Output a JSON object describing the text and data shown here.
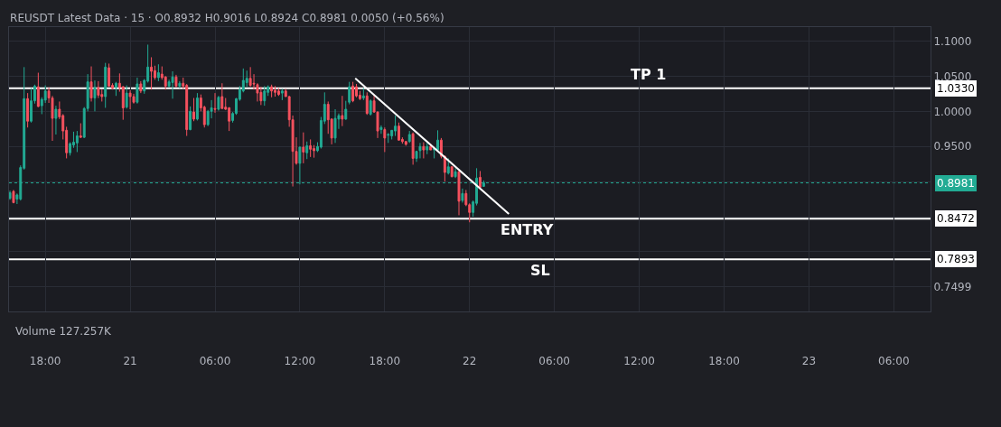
{
  "chart_data": {
    "type": "candlestick",
    "title": "REUSDT Latest Data · 15 · O0.8932 H0.9016 L0.8924 C0.8981 0.0050 (+0.56%)",
    "x": [
      "--01-20T15:30",
      "--01-20T15:45",
      "--01-20T16:00",
      "--01-20T16:15",
      "--01-20T16:30",
      "--01-20T16:45",
      "--01-20T17:00",
      "--01-20T17:15",
      "--01-20T17:30",
      "--01-20T17:45",
      "--01-20T18:00",
      "--01-20T18:15",
      "--01-20T18:30",
      "--01-20T18:45",
      "--01-20T19:00",
      "--01-20T19:15",
      "--01-20T19:30",
      "--01-20T19:45",
      "--01-20T20:00",
      "--01-20T20:15",
      "--01-20T20:30",
      "--01-20T20:45",
      "--01-20T21:00",
      "--01-20T21:15",
      "--01-20T21:30",
      "--01-20T21:45",
      "--01-20T22:00",
      "--01-20T22:15",
      "--01-20T22:30",
      "--01-20T22:45",
      "--01-20T23:00",
      "--01-20T23:15",
      "--01-20T23:30",
      "--01-20T23:45",
      "--01-21T00:00",
      "--01-21T00:15",
      "--01-21T00:30",
      "--01-21T00:45",
      "--01-21T01:00",
      "--01-21T01:15",
      "--01-21T01:30",
      "--01-21T01:45",
      "--01-21T02:00",
      "--01-21T02:15",
      "--01-21T02:30",
      "--01-21T02:45",
      "--01-21T03:00",
      "--01-21T03:15",
      "--01-21T03:30",
      "--01-21T03:45",
      "--01-21T04:00",
      "--01-21T04:15",
      "--01-21T04:30",
      "--01-21T04:45",
      "--01-21T05:00",
      "--01-21T05:15",
      "--01-21T05:30",
      "--01-21T05:45",
      "--01-21T06:00",
      "--01-21T06:15",
      "--01-21T06:30",
      "--01-21T06:45",
      "--01-21T07:00",
      "--01-21T07:15",
      "--01-21T07:30",
      "--01-21T07:45",
      "--01-21T08:00",
      "--01-21T08:15",
      "--01-21T08:30",
      "--01-21T08:45",
      "--01-21T09:00",
      "--01-21T09:15",
      "--01-21T09:30",
      "--01-21T09:45",
      "--01-21T10:00",
      "--01-21T10:15",
      "--01-21T10:30",
      "--01-21T10:45",
      "--01-21T11:00",
      "--01-21T11:15",
      "--01-21T11:30",
      "--01-21T11:45",
      "--01-21T12:00",
      "--01-21T12:15",
      "--01-21T12:30",
      "--01-21T12:45",
      "--01-21T13:00",
      "--01-21T13:15",
      "--01-21T13:30",
      "--01-21T13:45",
      "--01-21T14:00",
      "--01-21T14:15",
      "--01-21T14:30",
      "--01-21T14:45",
      "--01-21T15:00",
      "--01-21T15:15",
      "--01-21T15:30",
      "--01-21T15:45",
      "--01-21T16:00",
      "--01-21T16:15",
      "--01-21T16:30",
      "--01-21T16:45",
      "--01-21T17:00",
      "--01-21T17:15",
      "--01-21T17:30",
      "--01-21T17:45",
      "--01-21T18:00",
      "--01-21T18:15",
      "--01-21T18:30",
      "--01-21T18:45",
      "--01-21T19:00",
      "--01-21T19:15",
      "--01-21T19:30",
      "--01-21T19:45",
      "--01-21T20:00",
      "--01-21T20:15",
      "--01-21T20:30",
      "--01-21T20:45",
      "--01-21T21:00",
      "--01-21T21:15",
      "--01-21T21:30",
      "--01-21T21:45",
      "--01-21T22:00",
      "--01-21T22:15",
      "--01-21T22:30",
      "--01-21T22:45",
      "--01-21T23:00",
      "--01-21T23:15",
      "--01-21T23:30",
      "--01-21T23:45",
      "--01-22T00:00",
      "--01-22T00:15",
      "--01-22T00:30",
      "--01-22T00:45",
      "--01-22T01:00"
    ],
    "ohlc": [
      [
        0.876,
        0.887,
        0.874,
        0.884
      ],
      [
        0.886,
        0.888,
        0.869,
        0.87
      ],
      [
        0.875,
        0.883,
        0.868,
        0.881
      ],
      [
        0.875,
        0.923,
        0.873,
        0.92
      ],
      [
        0.919,
        1.063,
        0.917,
        1.018
      ],
      [
        1.018,
        1.026,
        0.977,
        0.986
      ],
      [
        0.986,
        1.033,
        0.984,
        1.015
      ],
      [
        1.015,
        1.038,
        1.011,
        1.036
      ],
      [
        1.035,
        1.055,
        1.006,
        1.007
      ],
      [
        1.008,
        1.02,
        0.996,
        1.017
      ],
      [
        1.016,
        1.037,
        1.012,
        1.029
      ],
      [
        1.029,
        1.034,
        1.012,
        1.019
      ],
      [
        1.019,
        1.022,
        0.958,
        0.99
      ],
      [
        0.99,
        1.008,
        0.967,
        1.003
      ],
      [
        1.003,
        1.014,
        0.989,
        0.992
      ],
      [
        0.994,
        0.996,
        0.96,
        0.972
      ],
      [
        0.973,
        0.978,
        0.933,
        0.941
      ],
      [
        0.941,
        0.956,
        0.937,
        0.954
      ],
      [
        0.952,
        0.971,
        0.948,
        0.956
      ],
      [
        0.955,
        0.972,
        0.942,
        0.965
      ],
      [
        0.965,
        0.983,
        0.962,
        0.963
      ],
      [
        0.963,
        1.006,
        0.962,
        1.004
      ],
      [
        1.004,
        1.053,
        1.0,
        1.042
      ],
      [
        1.042,
        1.064,
        1.014,
        1.019
      ],
      [
        1.019,
        1.044,
        1.0,
        1.034
      ],
      [
        1.034,
        1.043,
        1.019,
        1.023
      ],
      [
        1.024,
        1.031,
        1.014,
        1.021
      ],
      [
        1.021,
        1.069,
        1.005,
        1.063
      ],
      [
        1.062,
        1.068,
        1.035,
        1.036
      ],
      [
        1.037,
        1.04,
        1.031,
        1.033
      ],
      [
        1.034,
        1.042,
        1.022,
        1.04
      ],
      [
        1.04,
        1.054,
        1.028,
        1.034
      ],
      [
        1.035,
        1.036,
        0.988,
        1.005
      ],
      [
        1.006,
        1.037,
        1.004,
        1.026
      ],
      [
        1.026,
        1.03,
        1.003,
        1.021
      ],
      [
        1.021,
        1.025,
        1.011,
        1.013
      ],
      [
        1.013,
        1.048,
        1.011,
        1.039
      ],
      [
        1.039,
        1.043,
        1.026,
        1.029
      ],
      [
        1.029,
        1.046,
        1.025,
        1.044
      ],
      [
        1.043,
        1.095,
        1.041,
        1.063
      ],
      [
        1.063,
        1.077,
        1.031,
        1.057
      ],
      [
        1.058,
        1.065,
        1.045,
        1.048
      ],
      [
        1.048,
        1.067,
        1.043,
        1.055
      ],
      [
        1.053,
        1.064,
        1.045,
        1.048
      ],
      [
        1.049,
        1.05,
        1.031,
        1.036
      ],
      [
        1.036,
        1.045,
        1.034,
        1.042
      ],
      [
        1.041,
        1.057,
        1.018,
        1.049
      ],
      [
        1.049,
        1.052,
        1.034,
        1.036
      ],
      [
        1.036,
        1.043,
        1.033,
        1.04
      ],
      [
        1.04,
        1.048,
        1.032,
        1.036
      ],
      [
        1.037,
        1.039,
        0.965,
        0.974
      ],
      [
        0.974,
        1.007,
        0.973,
        1.0
      ],
      [
        0.999,
        1.019,
        0.986,
        0.989
      ],
      [
        0.989,
        1.026,
        0.987,
        1.019
      ],
      [
        1.019,
        1.024,
        1.0,
        1.005
      ],
      [
        1.006,
        1.008,
        0.977,
        0.981
      ],
      [
        0.981,
        1.002,
        0.979,
        1.0
      ],
      [
        1.0,
        1.016,
        0.99,
        1.005
      ],
      [
        1.004,
        1.026,
        0.998,
        1.003
      ],
      [
        1.003,
        1.022,
        1.001,
        1.02
      ],
      [
        1.021,
        1.04,
        1.004,
        1.004
      ],
      [
        1.006,
        1.019,
        1.002,
        1.003
      ],
      [
        1.005,
        1.006,
        0.972,
        0.986
      ],
      [
        0.987,
        0.999,
        0.984,
        0.997
      ],
      [
        0.997,
        1.019,
        0.995,
        1.018
      ],
      [
        1.017,
        1.036,
        1.015,
        1.031
      ],
      [
        1.029,
        1.061,
        1.027,
        1.044
      ],
      [
        1.041,
        1.058,
        1.035,
        1.047
      ],
      [
        1.047,
        1.063,
        1.035,
        1.037
      ],
      [
        1.04,
        1.053,
        1.031,
        1.039
      ],
      [
        1.038,
        1.04,
        1.014,
        1.026
      ],
      [
        1.027,
        1.035,
        1.009,
        1.015
      ],
      [
        1.015,
        1.036,
        1.008,
        1.029
      ],
      [
        1.027,
        1.037,
        1.022,
        1.035
      ],
      [
        1.035,
        1.038,
        1.02,
        1.029
      ],
      [
        1.03,
        1.036,
        1.021,
        1.027
      ],
      [
        1.029,
        1.033,
        1.022,
        1.024
      ],
      [
        1.026,
        1.032,
        1.016,
        1.029
      ],
      [
        1.029,
        1.032,
        1.021,
        1.021
      ],
      [
        1.021,
        1.022,
        0.978,
        0.988
      ],
      [
        0.988,
        0.994,
        0.893,
        0.943
      ],
      [
        0.943,
        0.963,
        0.924,
        0.926
      ],
      [
        0.926,
        0.95,
        0.896,
        0.949
      ],
      [
        0.949,
        0.97,
        0.926,
        0.942
      ],
      [
        0.941,
        0.957,
        0.932,
        0.951
      ],
      [
        0.951,
        0.96,
        0.935,
        0.946
      ],
      [
        0.947,
        0.952,
        0.934,
        0.944
      ],
      [
        0.944,
        0.956,
        0.942,
        0.95
      ],
      [
        0.949,
        0.992,
        0.947,
        0.987
      ],
      [
        0.986,
        1.027,
        0.982,
        1.01
      ],
      [
        1.01,
        1.014,
        0.968,
        0.988
      ],
      [
        0.989,
        0.99,
        0.953,
        0.962
      ],
      [
        0.962,
        1.003,
        0.955,
        0.99
      ],
      [
        0.989,
        0.997,
        0.975,
        0.994
      ],
      [
        0.994,
        1.022,
        0.979,
        0.989
      ],
      [
        0.989,
        1.015,
        0.988,
        1.003
      ],
      [
        1.013,
        1.042,
        1.01,
        1.035
      ],
      [
        1.036,
        1.042,
        1.013,
        1.015
      ],
      [
        1.035,
        1.039,
        1.02,
        1.022
      ],
      [
        1.023,
        1.029,
        1.016,
        1.018
      ],
      [
        1.019,
        1.033,
        1.016,
        1.022
      ],
      [
        1.022,
        1.027,
        0.995,
        0.997
      ],
      [
        0.996,
        1.017,
        0.994,
        1.015
      ],
      [
        1.015,
        1.024,
        0.998,
        0.999
      ],
      [
        0.999,
        1.0,
        0.962,
        0.972
      ],
      [
        0.974,
        0.98,
        0.968,
        0.977
      ],
      [
        0.974,
        0.977,
        0.942,
        0.962
      ],
      [
        0.966,
        0.969,
        0.955,
        0.967
      ],
      [
        0.965,
        0.973,
        0.96,
        0.973
      ],
      [
        0.972,
        0.994,
        0.965,
        0.979
      ],
      [
        0.979,
        0.984,
        0.958,
        0.959
      ],
      [
        0.96,
        0.963,
        0.954,
        0.957
      ],
      [
        0.957,
        0.958,
        0.951,
        0.953
      ],
      [
        0.957,
        0.972,
        0.955,
        0.967
      ],
      [
        0.968,
        0.97,
        0.924,
        0.933
      ],
      [
        0.933,
        0.944,
        0.928,
        0.943
      ],
      [
        0.944,
        0.955,
        0.933,
        0.95
      ],
      [
        0.95,
        0.956,
        0.933,
        0.945
      ],
      [
        0.945,
        0.955,
        0.939,
        0.95
      ],
      [
        0.95,
        0.954,
        0.945,
        0.945
      ],
      [
        0.945,
        0.949,
        0.933,
        0.947
      ],
      [
        0.945,
        0.973,
        0.943,
        0.959
      ],
      [
        0.959,
        0.962,
        0.933,
        0.936
      ],
      [
        0.936,
        0.937,
        0.9,
        0.913
      ],
      [
        0.912,
        0.933,
        0.91,
        0.921
      ],
      [
        0.921,
        0.922,
        0.906,
        0.907
      ],
      [
        0.907,
        0.919,
        0.905,
        0.914
      ],
      [
        0.914,
        0.915,
        0.852,
        0.872
      ],
      [
        0.873,
        0.89,
        0.87,
        0.883
      ],
      [
        0.883,
        0.888,
        0.865,
        0.867
      ],
      [
        0.867,
        0.869,
        0.842,
        0.856
      ],
      [
        0.856,
        0.873,
        0.85,
        0.871
      ],
      [
        0.869,
        0.919,
        0.866,
        0.905
      ],
      [
        0.906,
        0.915,
        0.889,
        0.892
      ],
      [
        0.8932,
        0.9016,
        0.8924,
        0.8981
      ]
    ],
    "colors": [
      "#22ab94",
      "#f7525f",
      "#22ab94",
      "#22ab94",
      "#22ab94",
      "#f7525f",
      "#22ab94",
      "#22ab94",
      "#f7525f",
      "#22ab94",
      "#22ab94",
      "#f7525f",
      "#f7525f",
      "#22ab94",
      "#f7525f",
      "#f7525f",
      "#f7525f",
      "#22ab94",
      "#22ab94",
      "#22ab94",
      "#f7525f",
      "#22ab94",
      "#22ab94",
      "#f7525f",
      "#22ab94",
      "#f7525f",
      "#f7525f",
      "#22ab94",
      "#f7525f",
      "#f7525f",
      "#22ab94",
      "#f7525f",
      "#f7525f",
      "#22ab94",
      "#f7525f",
      "#f7525f",
      "#22ab94",
      "#f7525f",
      "#22ab94",
      "#22ab94",
      "#f7525f",
      "#f7525f",
      "#22ab94",
      "#f7525f",
      "#f7525f",
      "#22ab94",
      "#22ab94",
      "#f7525f",
      "#22ab94",
      "#f7525f",
      "#f7525f",
      "#22ab94",
      "#f7525f",
      "#22ab94",
      "#f7525f",
      "#f7525f",
      "#22ab94",
      "#22ab94",
      "#f7525f",
      "#22ab94",
      "#f7525f",
      "#f7525f",
      "#f7525f",
      "#22ab94",
      "#22ab94",
      "#22ab94",
      "#22ab94",
      "#22ab94",
      "#f7525f",
      "#f7525f",
      "#f7525f",
      "#f7525f",
      "#22ab94",
      "#22ab94",
      "#f7525f",
      "#f7525f",
      "#f7525f",
      "#22ab94",
      "#f7525f",
      "#f7525f",
      "#f7525f",
      "#f7525f",
      "#22ab94",
      "#f7525f",
      "#22ab94",
      "#f7525f",
      "#f7525f",
      "#22ab94",
      "#22ab94",
      "#22ab94",
      "#f7525f",
      "#f7525f",
      "#22ab94",
      "#22ab94",
      "#f7525f",
      "#22ab94",
      "#22ab94",
      "#f7525f",
      "#f7525f",
      "#f7525f",
      "#22ab94",
      "#f7525f",
      "#22ab94",
      "#f7525f",
      "#f7525f",
      "#22ab94",
      "#f7525f",
      "#22ab94",
      "#22ab94",
      "#22ab94",
      "#f7525f",
      "#f7525f",
      "#f7525f",
      "#22ab94",
      "#f7525f",
      "#22ab94",
      "#22ab94",
      "#f7525f",
      "#22ab94",
      "#f7525f",
      "#22ab94",
      "#22ab94",
      "#f7525f",
      "#f7525f",
      "#22ab94",
      "#f7525f",
      "#22ab94",
      "#f7525f",
      "#22ab94",
      "#f7525f",
      "#f7525f",
      "#22ab94",
      "#22ab94",
      "#f7525f",
      "#22ab94"
    ],
    "series": [
      {
        "type": "line",
        "x": [
          "--01-21T15:55",
          "--01-22T02:47"
        ],
        "values": [
          1.047,
          0.854
        ],
        "color": "#ffffff"
      }
    ],
    "ref_lines": [
      {
        "axis": "y",
        "value": 1.033,
        "label": "1.0330",
        "color": "#ffffff",
        "line_style": "solid"
      },
      {
        "axis": "y",
        "value": 0.8472,
        "label": "0.8472",
        "color": "#ffffff",
        "line_style": "solid"
      },
      {
        "axis": "y",
        "value": 0.7893,
        "label": "0.7893",
        "color": "#ffffff",
        "line_style": "solid"
      },
      {
        "axis": "y",
        "value": 0.8981,
        "label": "0.8981",
        "color": "#22ab94",
        "line_style": "dotted"
      }
    ],
    "annotations": [
      "TP 1",
      "ENTRY",
      "SL",
      "Volume 127.257K"
    ],
    "xlim": [
      "--01-20T15:26",
      "--01-23T08:36"
    ],
    "xticks": [
      {
        "value": "--01-20T18:00",
        "label": "18:00"
      },
      {
        "value": "--01-21T00:00",
        "label": "21"
      },
      {
        "value": "--01-21T06:00",
        "label": "06:00"
      },
      {
        "value": "--01-21T12:00",
        "label": "12:00"
      },
      {
        "value": "--01-21T18:00",
        "label": "18:00"
      },
      {
        "value": "--01-22T00:00",
        "label": "22"
      },
      {
        "value": "--01-22T06:00",
        "label": "06:00"
      },
      {
        "value": "--01-22T12:00",
        "label": "12:00"
      },
      {
        "value": "--01-22T18:00",
        "label": "18:00"
      },
      {
        "value": "--01-23T00:00",
        "label": "23"
      },
      {
        "value": "--01-23T06:00",
        "label": "06:00"
      }
    ],
    "ylim": [
      0.715,
      1.12
    ],
    "yticks": [
      0.7499,
      {
        "value": 0.7999,
        "label": null
      },
      {
        "value": 0.85,
        "label": null
      },
      {
        "value": 0.9,
        "label": null
      },
      {
        "value": 0.95,
        "label": "0.9500"
      },
      {
        "value": 1.0,
        "label": "1.0000"
      },
      {
        "value": 1.05,
        "label": "1.0500"
      },
      {
        "value": 1.1,
        "label": "1.1000"
      }
    ],
    "grid": true
  }
}
